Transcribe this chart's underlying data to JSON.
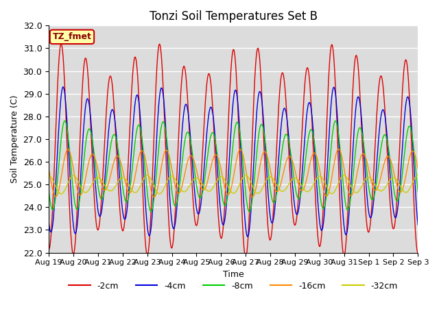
{
  "title": "Tonzi Soil Temperatures Set B",
  "xlabel": "Time",
  "ylabel": "Soil Temperature (C)",
  "ylim": [
    22.0,
    32.0
  ],
  "yticks": [
    22.0,
    23.0,
    24.0,
    25.0,
    26.0,
    27.0,
    28.0,
    29.0,
    30.0,
    31.0,
    32.0
  ],
  "bg_color": "#dcdcdc",
  "fig_color": "#ffffff",
  "label_box_text": "TZ_fmet",
  "label_box_bg": "#ffffaa",
  "label_box_edge": "#cc0000",
  "lines": [
    {
      "label": "-2cm",
      "color": "#dd0000",
      "amplitude": 4.0,
      "mean": 26.5,
      "lag": 0.0
    },
    {
      "label": "-4cm",
      "color": "#0000dd",
      "amplitude": 2.8,
      "mean": 26.0,
      "lag": 0.08
    },
    {
      "label": "-8cm",
      "color": "#00cc00",
      "amplitude": 1.7,
      "mean": 25.8,
      "lag": 0.15
    },
    {
      "label": "-16cm",
      "color": "#ff8800",
      "amplitude": 0.9,
      "mean": 25.5,
      "lag": 0.28
    },
    {
      "label": "-32cm",
      "color": "#cccc00",
      "amplitude": 0.35,
      "mean": 25.0,
      "lag": 0.5
    }
  ],
  "n_days": 15,
  "points_per_day": 48,
  "xtick_labels": [
    "Aug 19",
    "Aug 20",
    "Aug 21",
    "Aug 22",
    "Aug 23",
    "Aug 24",
    "Aug 25",
    "Aug 26",
    "Aug 27",
    "Aug 28",
    "Aug 29",
    "Aug 30",
    "Aug 31",
    "Sep 1",
    "Sep 2",
    "Sep 3"
  ]
}
